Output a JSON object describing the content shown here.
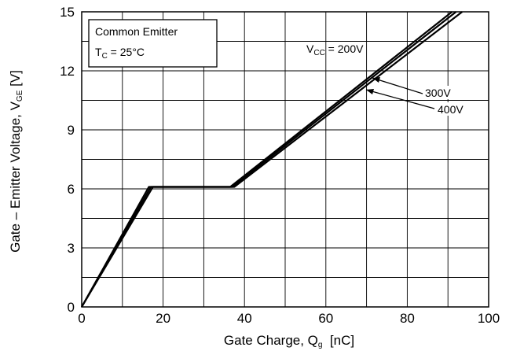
{
  "chart_data": {
    "type": "line",
    "title": "",
    "xlabel": {
      "main": "Gate Charge, Q",
      "sub": "g",
      "unit": "  [nC]"
    },
    "ylabel": {
      "main": "Gate – Emitter Voltage, V",
      "sub": "GE",
      "unit": " [V]"
    },
    "xlim": [
      0,
      100
    ],
    "ylim": [
      0,
      15
    ],
    "xticks": [
      0,
      20,
      40,
      60,
      80,
      100
    ],
    "yticks": [
      0,
      3,
      6,
      9,
      12,
      15
    ],
    "grid": true,
    "conditions": {
      "line1": "Common Emitter",
      "line2_main": "T",
      "line2_sub": "C",
      "line2_rest": " = 25°C"
    },
    "series": [
      {
        "name": "200V",
        "label_main": "V",
        "label_sub": "CC",
        "label_rest": " = 200V",
        "color": "#000000",
        "points": [
          [
            0,
            0
          ],
          [
            16.5,
            6.1
          ],
          [
            36.5,
            6.1
          ],
          [
            91,
            15
          ]
        ]
      },
      {
        "name": "300V",
        "label": "300V",
        "color": "#000000",
        "points": [
          [
            0,
            0
          ],
          [
            17.0,
            6.1
          ],
          [
            37.0,
            6.1
          ],
          [
            92,
            15
          ]
        ]
      },
      {
        "name": "400V",
        "label": "400V",
        "color": "#000000",
        "points": [
          [
            0,
            0
          ],
          [
            17.5,
            6.1
          ],
          [
            37.5,
            6.1
          ],
          [
            93.5,
            15
          ]
        ]
      }
    ]
  }
}
